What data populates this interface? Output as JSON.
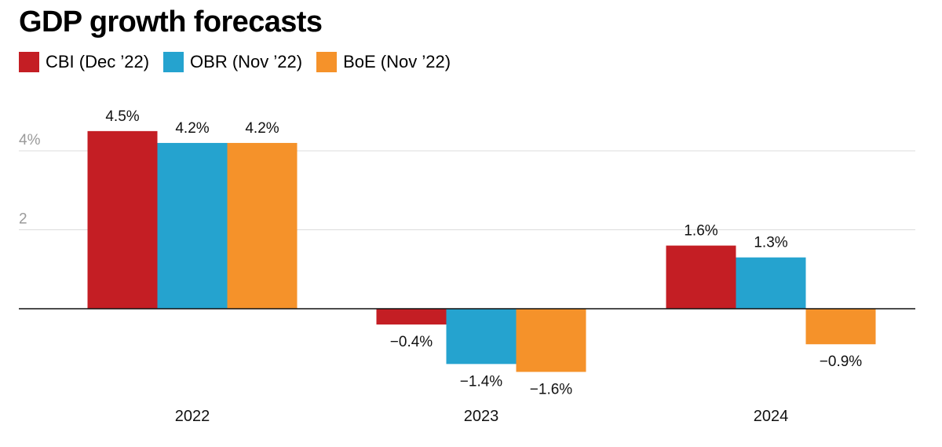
{
  "chart_data": {
    "type": "bar",
    "title": "GDP growth forecasts",
    "categories": [
      "2022",
      "2023",
      "2024"
    ],
    "series": [
      {
        "name": "CBI (Dec ’22)",
        "color": "#c41e24",
        "values": [
          4.5,
          -0.4,
          1.6
        ],
        "labels": [
          "4.5%",
          "−0.4%",
          "1.6%"
        ]
      },
      {
        "name": "OBR (Nov ’22)",
        "color": "#25a3cf",
        "values": [
          4.2,
          -1.4,
          1.3
        ],
        "labels": [
          "4.2%",
          "−1.4%",
          "1.3%"
        ]
      },
      {
        "name": "BoE (Nov ’22)",
        "color": "#f5922a",
        "values": [
          4.2,
          -1.6,
          -0.9
        ],
        "labels": [
          "4.2%",
          "−1.6%",
          "−0.9%"
        ]
      }
    ],
    "yticks": [
      {
        "value": 4,
        "label": "4%"
      },
      {
        "value": 2,
        "label": "2"
      }
    ],
    "xlabel": "",
    "ylabel": "",
    "ylim": [
      -2,
      5
    ],
    "grid": true,
    "legend_position": "top-left"
  }
}
